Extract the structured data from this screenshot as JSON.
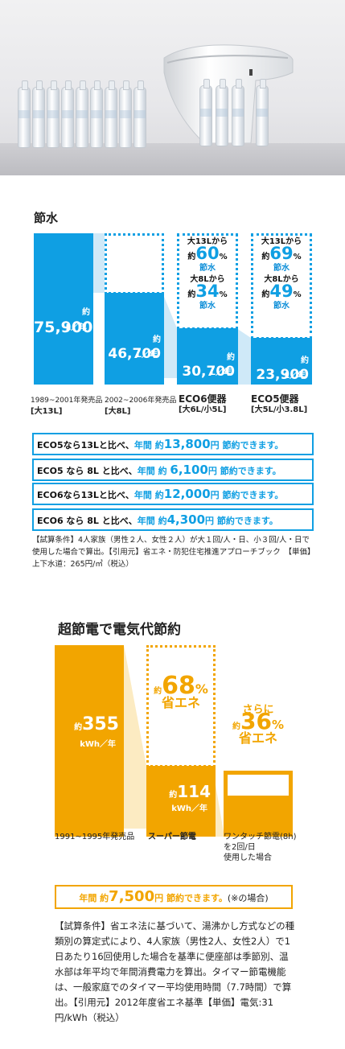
{
  "section1": {
    "title": "節水",
    "bars": [
      {
        "value_prefix": "約",
        "value": "75,900",
        "unit": "L／年",
        "label1": "1989~2001年発売品",
        "label2": "[大13L]"
      },
      {
        "value_prefix": "約",
        "value": "46,700",
        "unit": "L／年",
        "label1": "2002~2006年発売品",
        "label2": "[大8L]"
      },
      {
        "value_prefix": "約",
        "value": "30,700",
        "unit": "L／年",
        "label1": "ECO6便器",
        "label2": "[大6L/小5L]",
        "callout_a_from": "大13Lから",
        "callout_a_prefix": "約",
        "callout_a_pct": "60",
        "callout_a_pct_sign": "%",
        "callout_a_suffix": "節水",
        "callout_b_from": "大8Lから",
        "callout_b_prefix": "約",
        "callout_b_pct": "34",
        "callout_b_pct_sign": "%",
        "callout_b_suffix": "節水"
      },
      {
        "value_prefix": "約",
        "value": "23,900",
        "unit": "L／年",
        "label1": "ECO5便器",
        "label2": "[大5L/小3.8L]",
        "callout_a_from": "大13Lから",
        "callout_a_prefix": "約",
        "callout_a_pct": "69",
        "callout_a_pct_sign": "%",
        "callout_a_suffix": "節水",
        "callout_b_from": "大8Lから",
        "callout_b_prefix": "約",
        "callout_b_pct": "49",
        "callout_b_pct_sign": "%",
        "callout_b_suffix": "節水"
      }
    ],
    "savings": [
      {
        "lead": "ECO5なら13Lと比べ、",
        "mid": "年間 約",
        "amount": "13,800",
        "unit": "円 節約できます。"
      },
      {
        "lead": "ECO5 なら 8L と比べ、",
        "mid": "年間 約 ",
        "amount": "6,100",
        "unit": "円 節約できます。"
      },
      {
        "lead": "ECO6なら13Lと比べ、",
        "mid": "年間 約",
        "amount": "12,000",
        "unit": "円 節約できます。"
      },
      {
        "lead": "ECO6 なら 8L と比べ、",
        "mid": "年間 約",
        "amount": "4,300",
        "unit": "円 節約できます。"
      }
    ],
    "note": "【試算条件】4人家族（男性２人、女性２人）が大１回/人・日、小３回/人・日で使用した場合で算出。【引用元】省エネ・防犯住宅推進アプローチブック　【単価】上下水道：265円/㎥（税込）"
  },
  "section2": {
    "title": "超節電で電気代節約",
    "bar1": {
      "prefix": "約",
      "value": "355",
      "unit": "kWh／年",
      "label": "1991~1995年発売品"
    },
    "bar2": {
      "prefix": "約",
      "value": "114",
      "unit": "kWh／年",
      "label": "スーパー節電",
      "callout_prefix": "約",
      "callout_pct": "68",
      "callout_pct_sign": "%",
      "callout_suffix": "省エネ"
    },
    "bar3": {
      "label1": "ワンタッチ節電(8h)",
      "label2": "を2回/日",
      "label3": "使用した場合",
      "callout_pre": "さらに",
      "callout_prefix": "約",
      "callout_pct": "36",
      "callout_pct_sign": "%",
      "callout_suffix": "省エネ"
    },
    "saving": {
      "mid": "年間 約",
      "amount": "7,500",
      "unit": "円 節約できます。",
      "note": "(※の場合)"
    },
    "note": "【試算条件】省エネ法に基づいて、湯沸かし方式などの種類別の算定式により、4人家族（男性2人、女性2人）で1日あたり16回使用した場合を基準に便座部は季節別、温水部は年平均で年間消費電力を算出。タイマー節電機能は、一般家庭でのタイマー平均使用時間（7.7時間）で算出。【引用元】2012年度省エネ基準【単価】電気:31円/kWh（税込）"
  },
  "colors": {
    "blue": "#0f9fe3",
    "orange": "#f2a500"
  }
}
